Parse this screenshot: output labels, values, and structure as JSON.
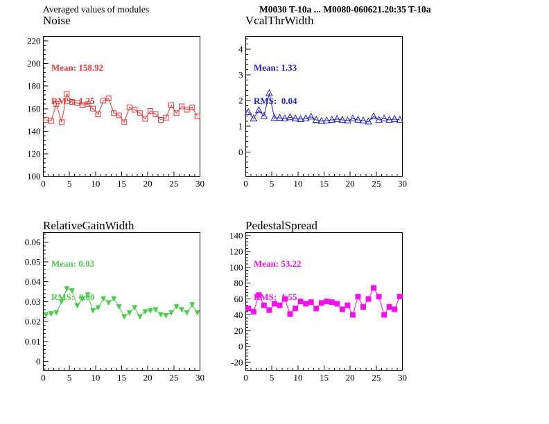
{
  "header": {
    "left_text": "Averaged values of modules",
    "right_text": "M0030 T-10a ... M0080-060621.20:35 T-10a"
  },
  "chart_data": [
    {
      "id": "noise",
      "type": "line",
      "title": "Noise",
      "stats": {
        "mean": "Mean: 158.92",
        "rms": "RMS:  1.25"
      },
      "color": "#e93838",
      "marker": "open-square",
      "grid": false,
      "legend_position": "none",
      "xlim": [
        0,
        30
      ],
      "ylim": [
        100,
        224
      ],
      "x_ticks": [
        0,
        5,
        10,
        15,
        20,
        25,
        30
      ],
      "x_tick_labels": [
        "0",
        "5",
        "10",
        "15",
        "20",
        "25",
        "30"
      ],
      "x_minor_step": 1,
      "y_ticks": [
        100,
        120,
        140,
        160,
        180,
        200,
        220
      ],
      "y_tick_labels": [
        "100",
        "120",
        "140",
        "160",
        "180",
        "200",
        "220"
      ],
      "y_minor_step": 4,
      "x": [
        0.5,
        1.5,
        2.5,
        3.5,
        4.5,
        5.5,
        6.5,
        7.5,
        8.5,
        9.5,
        10.5,
        11.5,
        12.5,
        13.5,
        14.5,
        15.5,
        16.5,
        17.5,
        18.5,
        19.5,
        20.5,
        21.5,
        22.5,
        23.5,
        24.5,
        25.5,
        26.5,
        27.5,
        28.5,
        29.5
      ],
      "values": [
        150,
        149,
        164,
        148,
        173,
        166,
        165,
        163,
        164,
        160,
        155,
        167,
        169,
        156,
        154,
        148,
        161,
        159,
        156,
        151,
        158,
        155,
        150,
        152,
        163,
        156,
        162,
        159,
        161,
        153
      ]
    },
    {
      "id": "vcalthrwidth",
      "type": "line",
      "title": "VcalThrWidth",
      "stats": {
        "mean": "Mean: 1.33",
        "rms": "RMS:  0.04"
      },
      "color": "#2222cc",
      "marker": "open-triangle-up",
      "grid": false,
      "legend_position": "none",
      "xlim": [
        0,
        30
      ],
      "ylim": [
        -0.95,
        4.5
      ],
      "x_ticks": [
        0,
        5,
        10,
        15,
        20,
        25,
        30
      ],
      "x_tick_labels": [
        "0",
        "5",
        "10",
        "15",
        "20",
        "25",
        "30"
      ],
      "x_minor_step": 1,
      "y_ticks": [
        0,
        1,
        2,
        3,
        4
      ],
      "y_tick_labels": [
        "0",
        "1",
        "2",
        "3",
        "4"
      ],
      "y_minor_step": 0.2,
      "x": [
        0.5,
        1.5,
        2.5,
        3.5,
        4.5,
        5.5,
        6.5,
        7.5,
        8.5,
        9.5,
        10.5,
        11.5,
        12.5,
        13.5,
        14.5,
        15.5,
        16.5,
        17.5,
        18.5,
        19.5,
        20.5,
        21.5,
        22.5,
        23.5,
        24.5,
        25.5,
        26.5,
        27.5,
        28.5,
        29.5
      ],
      "values": [
        1.55,
        1.3,
        1.62,
        1.4,
        2.28,
        1.32,
        1.33,
        1.3,
        1.35,
        1.3,
        1.28,
        1.3,
        1.37,
        1.25,
        1.2,
        1.22,
        1.25,
        1.28,
        1.25,
        1.22,
        1.3,
        1.25,
        1.22,
        1.18,
        1.38,
        1.25,
        1.3,
        1.25,
        1.28,
        1.25
      ]
    },
    {
      "id": "relativegainwidth",
      "type": "line",
      "title": "RelativeGainWidth",
      "stats": {
        "mean": "Mean: 0.03",
        "rms": "RMS:  0.00"
      },
      "color": "#4ecb4e",
      "marker": "filled-triangle-down",
      "grid": false,
      "legend_position": "none",
      "xlim": [
        0,
        30
      ],
      "ylim": [
        -0.0045,
        0.0648
      ],
      "x_ticks": [
        0,
        5,
        10,
        15,
        20,
        25,
        30
      ],
      "x_tick_labels": [
        "0",
        "5",
        "10",
        "15",
        "20",
        "25",
        "30"
      ],
      "x_minor_step": 1,
      "y_ticks": [
        0,
        0.01,
        0.02,
        0.03,
        0.04,
        0.05,
        0.06
      ],
      "y_tick_labels": [
        "0",
        "0.01",
        "0.02",
        "0.03",
        "0.04",
        "0.05",
        "0.06"
      ],
      "y_minor_step": 0.002,
      "x": [
        0.5,
        1.5,
        2.5,
        3.5,
        4.5,
        5.5,
        6.5,
        7.5,
        8.5,
        9.5,
        10.5,
        11.5,
        12.5,
        13.5,
        14.5,
        15.5,
        16.5,
        17.5,
        18.5,
        19.5,
        20.5,
        21.5,
        22.5,
        23.5,
        24.5,
        25.5,
        26.5,
        27.5,
        28.5,
        29.5
      ],
      "values": [
        0.0235,
        0.024,
        0.0245,
        0.03,
        0.0365,
        0.0355,
        0.028,
        0.0315,
        0.0335,
        0.0255,
        0.027,
        0.0315,
        0.0295,
        0.0315,
        0.0275,
        0.0225,
        0.0245,
        0.027,
        0.0225,
        0.025,
        0.0255,
        0.026,
        0.0235,
        0.023,
        0.0245,
        0.0275,
        0.026,
        0.0245,
        0.0285,
        0.0245
      ]
    },
    {
      "id": "pedestalspread",
      "type": "line",
      "title": "PedestalSpread",
      "stats": {
        "mean": "Mean: 53.22",
        "rms": "RMS:  1.55"
      },
      "color": "#fb0ff0",
      "marker": "filled-square",
      "grid": false,
      "legend_position": "none",
      "xlim": [
        0,
        30
      ],
      "ylim": [
        -30,
        144
      ],
      "x_ticks": [
        0,
        5,
        10,
        15,
        20,
        25,
        30
      ],
      "x_tick_labels": [
        "0",
        "5",
        "10",
        "15",
        "20",
        "25",
        "30"
      ],
      "x_minor_step": 1,
      "y_ticks": [
        -20,
        0,
        20,
        40,
        60,
        80,
        100,
        120,
        140
      ],
      "y_tick_labels": [
        "-20",
        "0",
        "20",
        "40",
        "60",
        "80",
        "100",
        "120",
        "140"
      ],
      "y_minor_step": 4,
      "x": [
        0.5,
        1.5,
        2.5,
        3.5,
        4.5,
        5.5,
        6.5,
        7.5,
        8.5,
        9.5,
        10.5,
        11.5,
        12.5,
        13.5,
        14.5,
        15.5,
        16.5,
        17.5,
        18.5,
        19.5,
        20.5,
        21.5,
        22.5,
        23.5,
        24.5,
        25.5,
        26.5,
        27.5,
        28.5,
        29.5
      ],
      "values": [
        48,
        44,
        65,
        52,
        46,
        54,
        52,
        60,
        41,
        48,
        57,
        54,
        56,
        48,
        55,
        57,
        56,
        54,
        47,
        52,
        40,
        63,
        50,
        60,
        74,
        63,
        40,
        50,
        47,
        63
      ]
    }
  ]
}
